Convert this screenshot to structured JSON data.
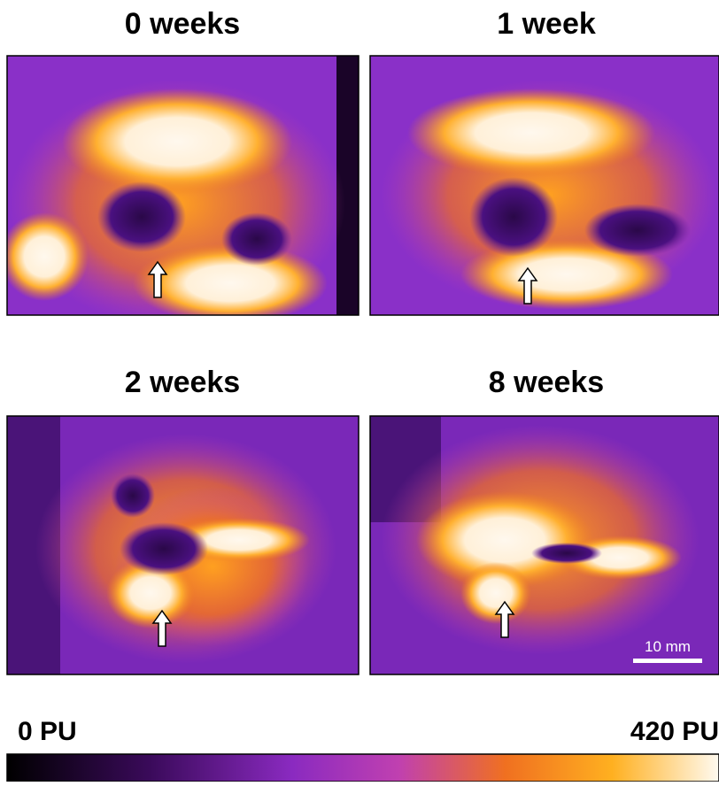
{
  "panels": [
    {
      "title": "0 weeks"
    },
    {
      "title": "1 week"
    },
    {
      "title": "2 weeks"
    },
    {
      "title": "8 weeks",
      "scale_bar": "10 mm"
    }
  ],
  "colorbar": {
    "min_label": "0 PU",
    "max_label": "420 PU"
  }
}
